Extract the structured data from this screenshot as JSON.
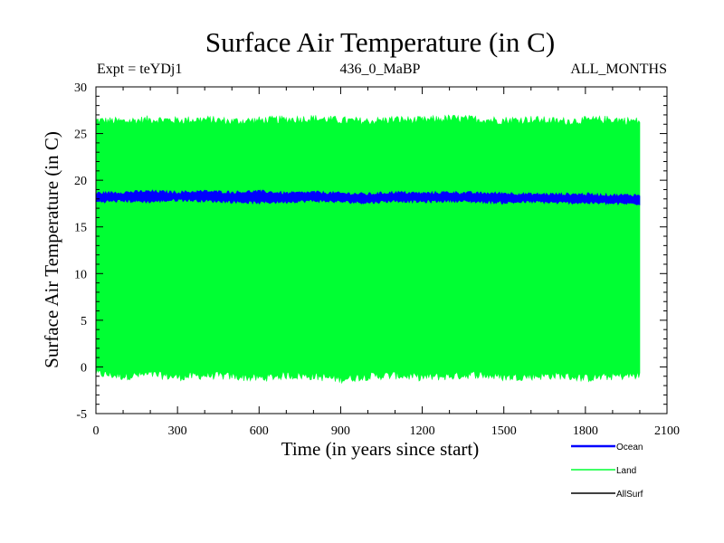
{
  "chart_data": {
    "type": "line",
    "title": "Surface Air Temperature (in C)",
    "subtitle_left": "Expt = teYDj1",
    "subtitle_center": "436_0_MaBP",
    "subtitle_right": "ALL_MONTHS",
    "xlabel": "Time (in years since start)",
    "ylabel": "Surface Air Temperature (in C)",
    "xlim": [
      0,
      2100
    ],
    "ylim": [
      -5,
      30
    ],
    "x_ticks": [
      0,
      300,
      600,
      900,
      1200,
      1500,
      1800,
      2100
    ],
    "y_ticks": [
      -5,
      0,
      5,
      10,
      15,
      20,
      25,
      30
    ],
    "x_range_data": [
      0,
      2000
    ],
    "series": [
      {
        "name": "Land",
        "color": "#00ff33",
        "description_values": {
          "min": -1,
          "max": 26.5
        },
        "band_low_curve": [
          [
            0,
            -0.7
          ],
          [
            100,
            -1.0
          ],
          [
            200,
            -0.8
          ],
          [
            300,
            -1.1
          ],
          [
            400,
            -0.9
          ],
          [
            500,
            -1.0
          ],
          [
            600,
            -1.2
          ],
          [
            700,
            -0.9
          ],
          [
            800,
            -1.0
          ],
          [
            900,
            -1.3
          ],
          [
            1000,
            -1.0
          ],
          [
            1100,
            -0.9
          ],
          [
            1200,
            -1.1
          ],
          [
            1300,
            -1.0
          ],
          [
            1400,
            -0.8
          ],
          [
            1500,
            -1.1
          ],
          [
            1600,
            -1.0
          ],
          [
            1700,
            -0.9
          ],
          [
            1800,
            -1.2
          ],
          [
            1900,
            -1.0
          ],
          [
            2000,
            -0.9
          ]
        ],
        "band_high_curve": [
          [
            0,
            26.4
          ],
          [
            100,
            26.3
          ],
          [
            200,
            26.5
          ],
          [
            300,
            26.4
          ],
          [
            400,
            26.5
          ],
          [
            500,
            26.3
          ],
          [
            600,
            26.4
          ],
          [
            700,
            26.5
          ],
          [
            800,
            26.6
          ],
          [
            900,
            26.4
          ],
          [
            1000,
            26.3
          ],
          [
            1100,
            26.5
          ],
          [
            1200,
            26.4
          ],
          [
            1300,
            26.6
          ],
          [
            1400,
            26.5
          ],
          [
            1500,
            26.4
          ],
          [
            1600,
            26.5
          ],
          [
            1700,
            26.3
          ],
          [
            1800,
            26.4
          ],
          [
            1900,
            26.5
          ],
          [
            2000,
            26.3
          ]
        ]
      },
      {
        "name": "Ocean",
        "color": "#0000ff",
        "band_low_curve": [
          [
            0,
            17.7
          ],
          [
            100,
            17.8
          ],
          [
            200,
            17.7
          ],
          [
            300,
            17.9
          ],
          [
            400,
            17.8
          ],
          [
            500,
            17.7
          ],
          [
            600,
            17.6
          ],
          [
            700,
            17.7
          ],
          [
            800,
            17.8
          ],
          [
            900,
            17.7
          ],
          [
            1000,
            17.6
          ],
          [
            1100,
            17.8
          ],
          [
            1200,
            17.7
          ],
          [
            1300,
            17.8
          ],
          [
            1400,
            17.7
          ],
          [
            1500,
            17.6
          ],
          [
            1600,
            17.7
          ],
          [
            1700,
            17.6
          ],
          [
            1800,
            17.6
          ],
          [
            1900,
            17.5
          ],
          [
            2000,
            17.5
          ]
        ],
        "band_high_curve": [
          [
            0,
            18.6
          ],
          [
            100,
            18.7
          ],
          [
            200,
            18.8
          ],
          [
            300,
            18.7
          ],
          [
            400,
            18.8
          ],
          [
            500,
            18.7
          ],
          [
            600,
            18.8
          ],
          [
            700,
            18.6
          ],
          [
            800,
            18.7
          ],
          [
            900,
            18.6
          ],
          [
            1000,
            18.5
          ],
          [
            1100,
            18.7
          ],
          [
            1200,
            18.6
          ],
          [
            1300,
            18.7
          ],
          [
            1400,
            18.6
          ],
          [
            1500,
            18.6
          ],
          [
            1600,
            18.5
          ],
          [
            1700,
            18.5
          ],
          [
            1800,
            18.5
          ],
          [
            1900,
            18.4
          ],
          [
            2000,
            18.4
          ]
        ]
      },
      {
        "name": "AllSurf",
        "color": "#000000"
      }
    ],
    "legend": {
      "placement": "bottom-right",
      "entries": [
        {
          "label": "Ocean",
          "color": "#0000ff"
        },
        {
          "label": "Land",
          "color": "#00ff33"
        },
        {
          "label": "AllSurf",
          "color": "#000000"
        }
      ]
    }
  }
}
